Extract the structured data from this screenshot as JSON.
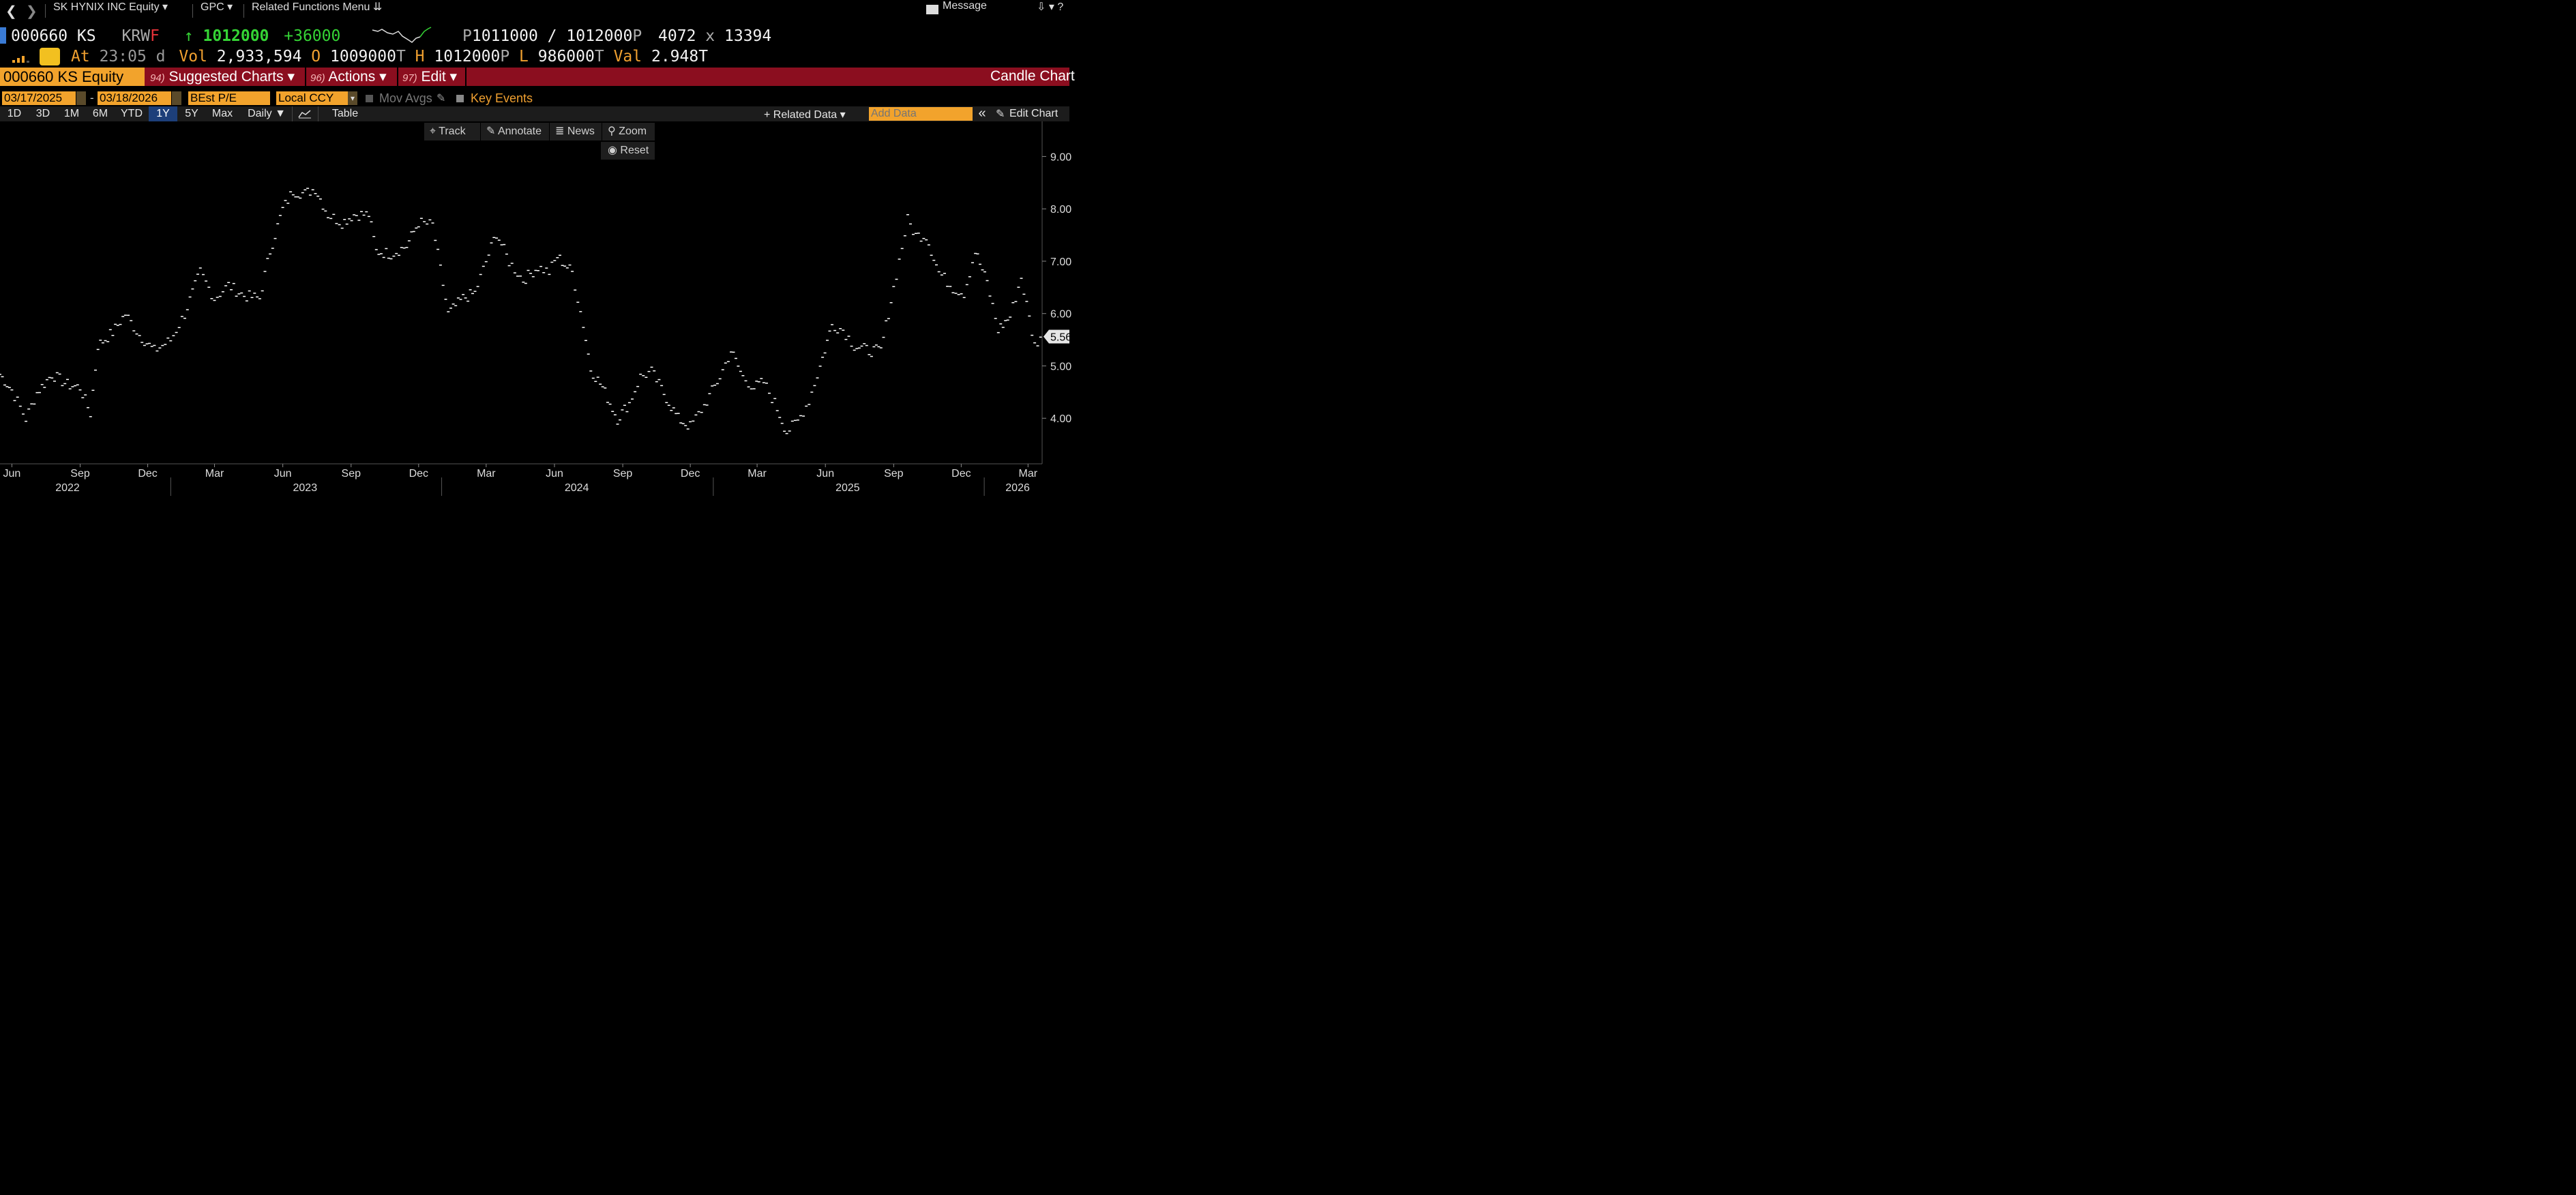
{
  "nav": {
    "security_label": "SK HYNIX INC Equity ▾",
    "function_label": "GPC ▾",
    "related_label": "Related Functions Menu ⇊",
    "message_label": "Message",
    "right_icons": "⇩ ▾ ?"
  },
  "quote": {
    "ticker": "000660 KS",
    "currency": "KRW",
    "flag": "F",
    "arrow": "↑",
    "last": "1012000",
    "change": "+36000",
    "bid_prefix": "P",
    "bid": "1011000",
    "slash": "/",
    "ask": "1012000",
    "ask_suffix": "P",
    "bid_size": "4072",
    "x": "x",
    "ask_size": "13394",
    "at_label": "At",
    "time": "23:05",
    "d": "d",
    "vol_label": "Vol",
    "vol": "2,933,594",
    "open_label": "O",
    "open": "1009000",
    "open_suffix": "T",
    "high_label": "H",
    "high": "1012000",
    "high_suffix": "P",
    "low_label": "L",
    "low": "986000",
    "low_suffix": "T",
    "val_label": "Val",
    "val": "2.948T",
    "gauge_icon": "speedometer-icon",
    "bars_icon": "signal-bars-icon"
  },
  "band": {
    "ticker_box": "000660 KS Equity",
    "menus": [
      {
        "num": "94)",
        "label": "Suggested Charts ▾"
      },
      {
        "num": "96)",
        "label": "Actions ▾"
      },
      {
        "num": "97)",
        "label": "Edit ▾"
      }
    ],
    "chart_title": "Candle Chart"
  },
  "daterow": {
    "start": "03/17/2025",
    "dash": "-",
    "end": "03/18/2026",
    "field": "BEst P/E",
    "currency": "Local CCY",
    "mov_avgs": "Mov Avgs",
    "key_events": "Key Events"
  },
  "toolbar": {
    "ranges": [
      "1D",
      "3D",
      "1M",
      "6M",
      "YTD",
      "1Y",
      "5Y",
      "Max"
    ],
    "selected": "1Y",
    "freq": "Daily ▼",
    "table": "Table",
    "related_data": "+ Related Data ▾",
    "add_data_placeholder": "Add Data",
    "collapse": "«",
    "edit_chart": "Edit Chart"
  },
  "tools": {
    "track": "Track",
    "annotate": "Annotate",
    "news": "News",
    "zoom": "Zoom",
    "reset": "Reset"
  },
  "chart_data": {
    "type": "scatter",
    "series_description": "BEst P/E",
    "x_start": "2022-05-16",
    "x_end": "2026-03-20",
    "x_ticks": [
      {
        "date": "2022-06-01",
        "label": "Jun"
      },
      {
        "date": "2022-09-01",
        "label": "Sep"
      },
      {
        "date": "2022-12-01",
        "label": "Dec"
      },
      {
        "date": "2023-03-01",
        "label": "Mar"
      },
      {
        "date": "2023-06-01",
        "label": "Jun"
      },
      {
        "date": "2023-09-01",
        "label": "Sep"
      },
      {
        "date": "2023-12-01",
        "label": "Dec"
      },
      {
        "date": "2024-03-01",
        "label": "Mar"
      },
      {
        "date": "2024-06-01",
        "label": "Jun"
      },
      {
        "date": "2024-09-01",
        "label": "Sep"
      },
      {
        "date": "2024-12-01",
        "label": "Dec"
      },
      {
        "date": "2025-03-01",
        "label": "Mar"
      },
      {
        "date": "2025-06-01",
        "label": "Jun"
      },
      {
        "date": "2025-09-01",
        "label": "Sep"
      },
      {
        "date": "2025-12-01",
        "label": "Dec"
      },
      {
        "date": "2026-03-01",
        "label": "Mar"
      }
    ],
    "years": [
      {
        "date": "2022-08-15",
        "label": "2022"
      },
      {
        "date": "2023-07-01",
        "label": "2023"
      },
      {
        "date": "2024-07-01",
        "label": "2024"
      },
      {
        "date": "2025-07-01",
        "label": "2025"
      },
      {
        "date": "2026-02-15",
        "label": "2026"
      }
    ],
    "year_dividers": [
      "2023-01-01",
      "2024-01-01",
      "2025-01-01",
      "2026-01-01"
    ],
    "y_ticks": [
      {
        "value": 4.0,
        "label": "4.00"
      },
      {
        "value": 5.0,
        "label": "5.00"
      },
      {
        "value": 6.0,
        "label": "6.00"
      },
      {
        "value": 7.0,
        "label": "7.00"
      },
      {
        "value": 8.0,
        "label": "8.00"
      },
      {
        "value": 9.0,
        "label": "9.00"
      }
    ],
    "ylim": [
      3.13,
      9.67
    ],
    "last_value": 5.56,
    "last_label": "5.56",
    "points": [
      [
        "2022-05-16",
        4.85
      ],
      [
        "2022-06-01",
        4.55
      ],
      [
        "2022-06-20",
        4.0
      ],
      [
        "2022-07-05",
        4.5
      ],
      [
        "2022-07-25",
        4.85
      ],
      [
        "2022-08-15",
        4.65
      ],
      [
        "2022-09-01",
        4.6
      ],
      [
        "2022-09-15",
        4.1
      ],
      [
        "2022-09-25",
        5.4
      ],
      [
        "2022-10-15",
        5.65
      ],
      [
        "2022-11-01",
        6.0
      ],
      [
        "2022-11-20",
        5.6
      ],
      [
        "2022-12-10",
        5.3
      ],
      [
        "2023-01-01",
        5.5
      ],
      [
        "2023-01-20",
        6.0
      ],
      [
        "2023-02-10",
        6.8
      ],
      [
        "2023-03-01",
        6.3
      ],
      [
        "2023-03-20",
        6.55
      ],
      [
        "2023-04-10",
        6.35
      ],
      [
        "2023-05-01",
        6.3
      ],
      [
        "2023-05-15",
        7.2
      ],
      [
        "2023-06-01",
        8.0
      ],
      [
        "2023-06-15",
        8.35
      ],
      [
        "2023-07-01",
        8.3
      ],
      [
        "2023-07-15",
        8.4
      ],
      [
        "2023-08-01",
        7.9
      ],
      [
        "2023-08-20",
        7.75
      ],
      [
        "2023-09-05",
        7.9
      ],
      [
        "2023-09-25",
        7.9
      ],
      [
        "2023-10-05",
        7.2
      ],
      [
        "2023-10-25",
        7.15
      ],
      [
        "2023-11-15",
        7.3
      ],
      [
        "2023-12-01",
        7.75
      ],
      [
        "2023-12-20",
        7.7
      ],
      [
        "2024-01-10",
        6.0
      ],
      [
        "2024-01-30",
        6.3
      ],
      [
        "2024-02-15",
        6.4
      ],
      [
        "2024-03-01",
        7.0
      ],
      [
        "2024-03-15",
        7.55
      ],
      [
        "2024-04-01",
        7.0
      ],
      [
        "2024-04-20",
        6.65
      ],
      [
        "2024-05-10",
        6.9
      ],
      [
        "2024-05-25",
        6.8
      ],
      [
        "2024-06-05",
        7.1
      ],
      [
        "2024-06-25",
        6.8
      ],
      [
        "2024-07-10",
        5.8
      ],
      [
        "2024-07-20",
        4.95
      ],
      [
        "2024-08-05",
        4.6
      ],
      [
        "2024-08-25",
        4.0
      ],
      [
        "2024-09-10",
        4.3
      ],
      [
        "2024-09-25",
        4.8
      ],
      [
        "2024-10-10",
        4.9
      ],
      [
        "2024-10-30",
        4.4
      ],
      [
        "2024-11-15",
        4.0
      ],
      [
        "2024-12-01",
        3.85
      ],
      [
        "2024-12-20",
        4.25
      ],
      [
        "2025-01-10",
        4.8
      ],
      [
        "2025-01-25",
        5.3
      ],
      [
        "2025-02-10",
        4.8
      ],
      [
        "2025-02-25",
        4.6
      ],
      [
        "2025-03-10",
        4.7
      ],
      [
        "2025-03-25",
        4.3
      ],
      [
        "2025-04-10",
        3.75
      ],
      [
        "2025-04-25",
        3.95
      ],
      [
        "2025-05-10",
        4.35
      ],
      [
        "2025-05-25",
        5.0
      ],
      [
        "2025-06-10",
        5.8
      ],
      [
        "2025-06-25",
        5.7
      ],
      [
        "2025-07-10",
        5.4
      ],
      [
        "2025-07-30",
        5.3
      ],
      [
        "2025-08-15",
        5.3
      ],
      [
        "2025-09-01",
        6.5
      ],
      [
        "2025-09-20",
        7.8
      ],
      [
        "2025-10-01",
        7.5
      ],
      [
        "2025-10-15",
        7.5
      ],
      [
        "2025-11-01",
        6.8
      ],
      [
        "2025-11-20",
        6.5
      ],
      [
        "2025-12-05",
        6.4
      ],
      [
        "2025-12-20",
        7.2
      ],
      [
        "2026-01-05",
        6.6
      ],
      [
        "2026-01-20",
        5.7
      ],
      [
        "2026-02-05",
        5.95
      ],
      [
        "2026-02-20",
        6.7
      ],
      [
        "2026-03-10",
        5.4
      ],
      [
        "2026-03-18",
        5.56
      ]
    ]
  },
  "colors": {
    "background": "#000000",
    "band_red": "#8b0e1f",
    "amber": "#f2a32c",
    "green": "#35d435",
    "orange_text": "#f0a030",
    "series": "#ffffff"
  }
}
